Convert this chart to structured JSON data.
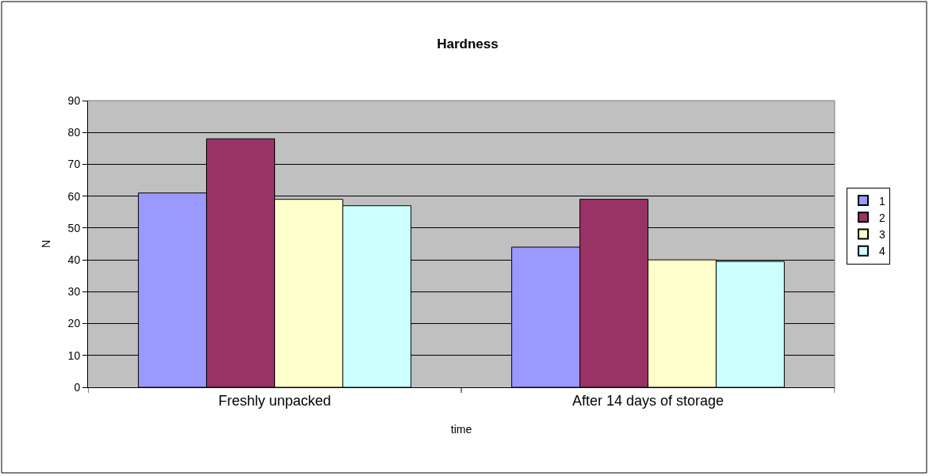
{
  "chart_data": {
    "type": "bar",
    "title": "Hardness",
    "xlabel": "time",
    "ylabel": "N",
    "categories": [
      "Freshly unpacked",
      "After 14 days of storage"
    ],
    "series": [
      {
        "name": "1",
        "color": "#9999ff",
        "values": [
          61,
          44
        ]
      },
      {
        "name": "2",
        "color": "#993366",
        "values": [
          78,
          59
        ]
      },
      {
        "name": "3",
        "color": "#ffffcc",
        "values": [
          59,
          40
        ]
      },
      {
        "name": "4",
        "color": "#ccffff",
        "values": [
          57,
          39.5
        ]
      }
    ],
    "ylim": [
      0,
      90
    ],
    "yticks": [
      0,
      10,
      20,
      30,
      40,
      50,
      60,
      70,
      80,
      90
    ],
    "grid": "y",
    "legend": "right"
  }
}
